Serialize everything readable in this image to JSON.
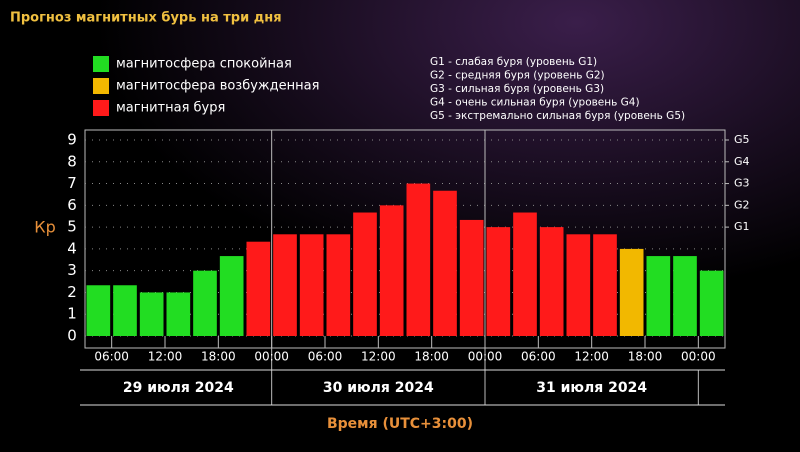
{
  "chart_data": {
    "type": "bar",
    "title": "Прогноз магнитных бурь на три дня",
    "y_label": "Кр",
    "x_label": "Время (UTC+3:00)",
    "legend": [
      {
        "name": "магнитосфера спокойная",
        "color": "#22dd22"
      },
      {
        "name": "магнитосфера возбужденная",
        "color": "#f2b800"
      },
      {
        "name": "магнитная буря",
        "color": "#ff1a1a"
      }
    ],
    "storm_levels": [
      "G1 - слабая буря (уровень G1)",
      "G2 - средняя буря (уровень G2)",
      "G3 - сильная буря (уровень G3)",
      "G4 - очень сильная буря (уровень G4)",
      "G5 - экстремально сильная буря (уровень G5)"
    ],
    "x": [
      3,
      6,
      9,
      12,
      15,
      18,
      21,
      24,
      27,
      30,
      33,
      36,
      39,
      42,
      45,
      48,
      51,
      54,
      57,
      60,
      63,
      66,
      69,
      72
    ],
    "values": [
      2.33,
      2.33,
      2,
      2,
      3,
      3.67,
      4.33,
      4.67,
      4.67,
      4.67,
      5.67,
      6,
      7,
      6.67,
      5.33,
      5,
      5.67,
      5,
      4.67,
      4.67,
      4,
      3.67,
      3.67,
      3
    ],
    "bar_colors": [
      "#22dd22",
      "#22dd22",
      "#22dd22",
      "#22dd22",
      "#22dd22",
      "#22dd22",
      "#ff1a1a",
      "#ff1a1a",
      "#ff1a1a",
      "#ff1a1a",
      "#ff1a1a",
      "#ff1a1a",
      "#ff1a1a",
      "#ff1a1a",
      "#ff1a1a",
      "#ff1a1a",
      "#ff1a1a",
      "#ff1a1a",
      "#ff1a1a",
      "#ff1a1a",
      "#f2b800",
      "#22dd22",
      "#22dd22",
      "#22dd22"
    ],
    "xlim": [
      3,
      75
    ],
    "xticks": [
      {
        "value": 6,
        "label": "06:00"
      },
      {
        "value": 12,
        "label": "12:00"
      },
      {
        "value": 18,
        "label": "18:00"
      },
      {
        "value": 24,
        "label": "00:00"
      },
      {
        "value": 30,
        "label": "06:00"
      },
      {
        "value": 36,
        "label": "12:00"
      },
      {
        "value": 42,
        "label": "18:00"
      },
      {
        "value": 48,
        "label": "00:00"
      },
      {
        "value": 54,
        "label": "06:00"
      },
      {
        "value": 60,
        "label": "12:00"
      },
      {
        "value": 66,
        "label": "18:00"
      },
      {
        "value": 72,
        "label": "00:00"
      }
    ],
    "day_bounds": [
      3,
      24,
      48,
      72
    ],
    "day_labels": [
      "29 июля 2024",
      "30 июля 2024",
      "31 июля 2024"
    ],
    "ylim": [
      0,
      9
    ],
    "yticks": [
      0,
      1,
      2,
      3,
      4,
      5,
      6,
      7,
      8,
      9
    ],
    "y2lim": [
      0,
      9
    ],
    "y2ticks": [
      {
        "value": 5,
        "label": "G1"
      },
      {
        "value": 6,
        "label": "G2"
      },
      {
        "value": 7,
        "label": "G3"
      },
      {
        "value": 8,
        "label": "G4"
      },
      {
        "value": 9,
        "label": "G5"
      }
    ],
    "grid": true
  }
}
